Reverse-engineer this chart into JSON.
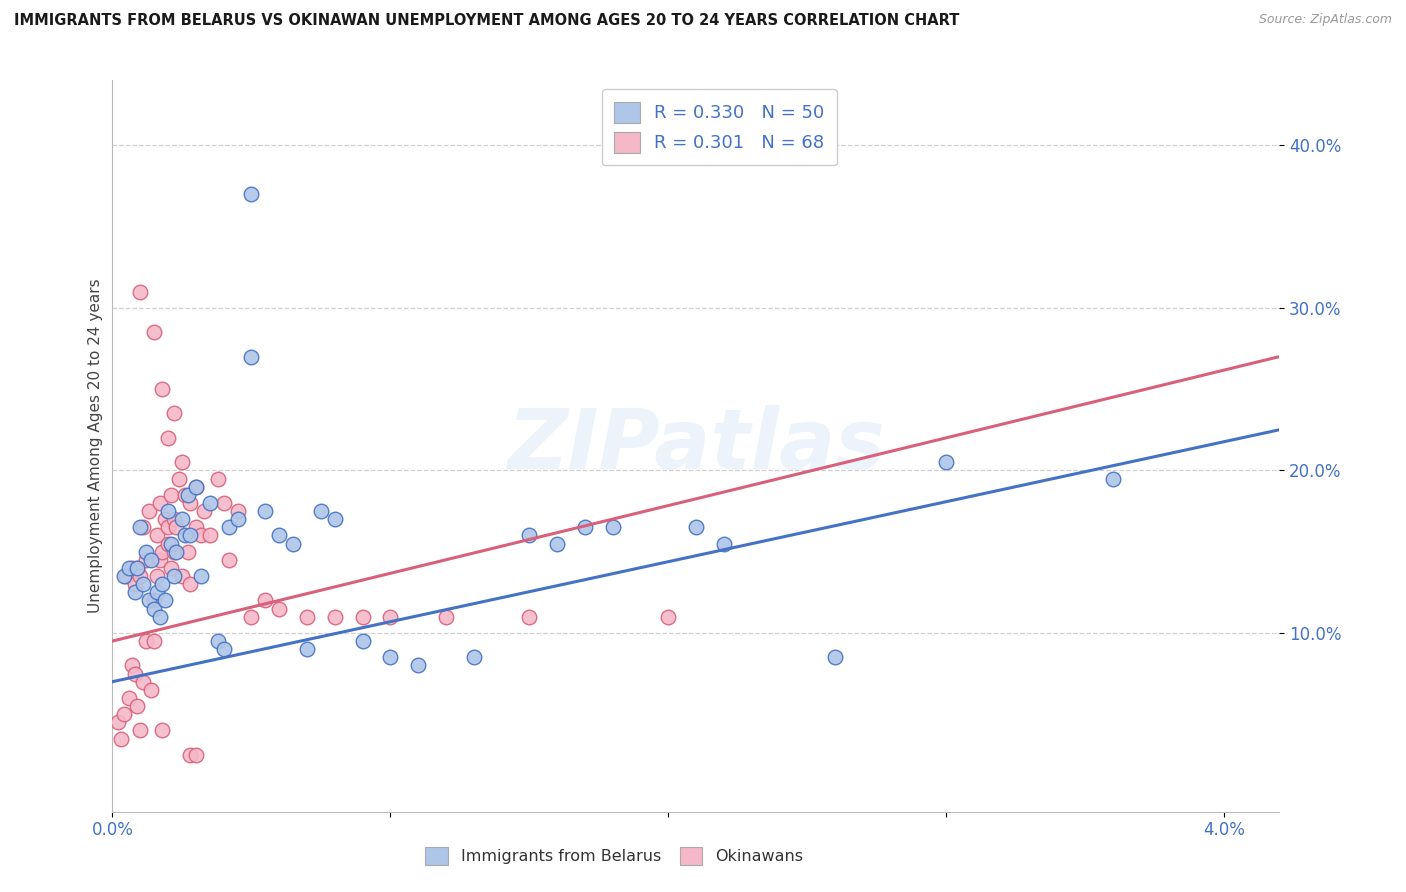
{
  "title": "IMMIGRANTS FROM BELARUS VS OKINAWAN UNEMPLOYMENT AMONG AGES 20 TO 24 YEARS CORRELATION CHART",
  "source": "Source: ZipAtlas.com",
  "ylabel": "Unemployment Among Ages 20 to 24 years",
  "xlim": [
    0.0,
    4.2
  ],
  "ylim": [
    -1.0,
    44.0
  ],
  "ytick_vals": [
    10.0,
    20.0,
    30.0,
    40.0
  ],
  "ytick_labels": [
    "10.0%",
    "20.0%",
    "30.0%",
    "40.0%"
  ],
  "xtick_vals": [
    0.0,
    1.0,
    2.0,
    3.0,
    4.0
  ],
  "xtick_labels_show": [
    "0.0%",
    "",
    "",
    "",
    "4.0%"
  ],
  "blue_color": "#aec6e8",
  "pink_color": "#f4b8c8",
  "blue_line_color": "#4472c4",
  "pink_line_color": "#d9607a",
  "axis_label_color": "#4472c4",
  "title_color": "#1a1a1a",
  "grid_color": "#d0d0d0",
  "watermark": "ZIPatlas",
  "blue_trend_x": [
    0.0,
    4.2
  ],
  "blue_trend_y": [
    7.0,
    22.5
  ],
  "pink_trend_x": [
    0.0,
    4.2
  ],
  "pink_trend_y": [
    9.5,
    27.0
  ],
  "blue_scatter_x": [
    0.04,
    0.06,
    0.08,
    0.09,
    0.1,
    0.11,
    0.12,
    0.13,
    0.14,
    0.15,
    0.16,
    0.17,
    0.18,
    0.19,
    0.2,
    0.21,
    0.22,
    0.23,
    0.25,
    0.26,
    0.27,
    0.28,
    0.3,
    0.32,
    0.35,
    0.38,
    0.4,
    0.42,
    0.45,
    0.5,
    0.55,
    0.6,
    0.65,
    0.7,
    0.75,
    0.8,
    0.9,
    1.0,
    1.1,
    1.3,
    1.5,
    1.6,
    1.7,
    1.8,
    2.1,
    2.2,
    2.6,
    3.0,
    3.6,
    0.5
  ],
  "blue_scatter_y": [
    13.5,
    14.0,
    12.5,
    14.0,
    16.5,
    13.0,
    15.0,
    12.0,
    14.5,
    11.5,
    12.5,
    11.0,
    13.0,
    12.0,
    17.5,
    15.5,
    13.5,
    15.0,
    17.0,
    16.0,
    18.5,
    16.0,
    19.0,
    13.5,
    18.0,
    9.5,
    9.0,
    16.5,
    17.0,
    27.0,
    17.5,
    16.0,
    15.5,
    9.0,
    17.5,
    17.0,
    9.5,
    8.5,
    8.0,
    8.5,
    16.0,
    15.5,
    16.5,
    16.5,
    16.5,
    15.5,
    8.5,
    20.5,
    19.5,
    37.0
  ],
  "pink_scatter_x": [
    0.02,
    0.03,
    0.04,
    0.05,
    0.06,
    0.07,
    0.07,
    0.08,
    0.08,
    0.09,
    0.09,
    0.1,
    0.1,
    0.11,
    0.11,
    0.12,
    0.12,
    0.13,
    0.14,
    0.15,
    0.15,
    0.16,
    0.16,
    0.17,
    0.17,
    0.18,
    0.18,
    0.19,
    0.2,
    0.2,
    0.21,
    0.21,
    0.22,
    0.22,
    0.23,
    0.24,
    0.25,
    0.26,
    0.27,
    0.28,
    0.28,
    0.3,
    0.3,
    0.32,
    0.33,
    0.35,
    0.38,
    0.4,
    0.42,
    0.45,
    0.5,
    0.55,
    0.6,
    0.7,
    0.8,
    0.9,
    1.0,
    1.2,
    1.5,
    2.0,
    0.1,
    0.15,
    0.18,
    0.2,
    0.22,
    0.25,
    0.28,
    0.3
  ],
  "pink_scatter_y": [
    4.5,
    3.5,
    5.0,
    13.5,
    6.0,
    8.0,
    14.0,
    7.5,
    13.0,
    5.5,
    14.0,
    4.0,
    13.5,
    16.5,
    7.0,
    9.5,
    14.5,
    17.5,
    6.5,
    9.5,
    12.0,
    13.5,
    16.0,
    14.5,
    18.0,
    4.0,
    15.0,
    17.0,
    15.5,
    16.5,
    14.0,
    18.5,
    15.0,
    17.0,
    16.5,
    19.5,
    13.5,
    18.5,
    15.0,
    18.0,
    13.0,
    16.5,
    19.0,
    16.0,
    17.5,
    16.0,
    19.5,
    18.0,
    14.5,
    17.5,
    11.0,
    12.0,
    11.5,
    11.0,
    11.0,
    11.0,
    11.0,
    11.0,
    11.0,
    11.0,
    31.0,
    28.5,
    25.0,
    22.0,
    23.5,
    20.5,
    2.5,
    2.5
  ]
}
